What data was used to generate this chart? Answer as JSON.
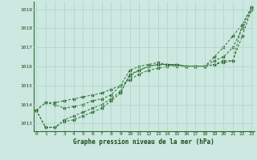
{
  "xlabel": "Graphe pression niveau de la mer (hPa)",
  "ylim": [
    1012.6,
    1019.4
  ],
  "xlim": [
    -0.3,
    23.3
  ],
  "yticks": [
    1013,
    1014,
    1015,
    1016,
    1017,
    1018,
    1019
  ],
  "xticks": [
    0,
    1,
    2,
    3,
    4,
    5,
    6,
    7,
    8,
    9,
    10,
    11,
    12,
    13,
    14,
    15,
    16,
    17,
    18,
    19,
    20,
    21,
    22,
    23
  ],
  "background_color": "#cce8e0",
  "grid_color": "#aad4c8",
  "line_color": "#2d6a2d",
  "series": [
    [
      1013.7,
      1014.1,
      1014.1,
      1014.2,
      1014.3,
      1014.4,
      1014.5,
      1014.6,
      1014.8,
      1015.0,
      1015.3,
      1015.6,
      1015.8,
      1015.9,
      1016.0,
      1016.1,
      1016.0,
      1016.0,
      1016.0,
      1016.1,
      1016.3,
      1016.3,
      1017.6,
      1019.0
    ],
    [
      1013.7,
      1012.8,
      1012.8,
      1013.1,
      1013.2,
      1013.4,
      1013.6,
      1013.8,
      1014.2,
      1014.6,
      1015.6,
      1015.8,
      1016.0,
      1016.1,
      1016.1,
      1016.1,
      1016.0,
      1016.0,
      1016.0,
      1016.1,
      1016.2,
      1016.3,
      1018.2,
      1019.1
    ],
    [
      1013.7,
      1012.8,
      1012.8,
      1013.2,
      1013.4,
      1013.6,
      1013.8,
      1014.0,
      1014.3,
      1014.7,
      1015.5,
      1015.8,
      1016.0,
      1016.1,
      1016.1,
      1016.1,
      1016.0,
      1016.0,
      1016.0,
      1016.3,
      1016.5,
      1017.0,
      1018.0,
      1019.0
    ],
    [
      1013.7,
      1014.1,
      1014.0,
      1013.8,
      1013.9,
      1014.0,
      1014.2,
      1014.3,
      1014.5,
      1015.0,
      1015.8,
      1016.0,
      1016.1,
      1016.2,
      1016.1,
      1016.0,
      1016.0,
      1016.0,
      1016.0,
      1016.5,
      1017.0,
      1017.6,
      1018.2,
      1019.1
    ]
  ]
}
